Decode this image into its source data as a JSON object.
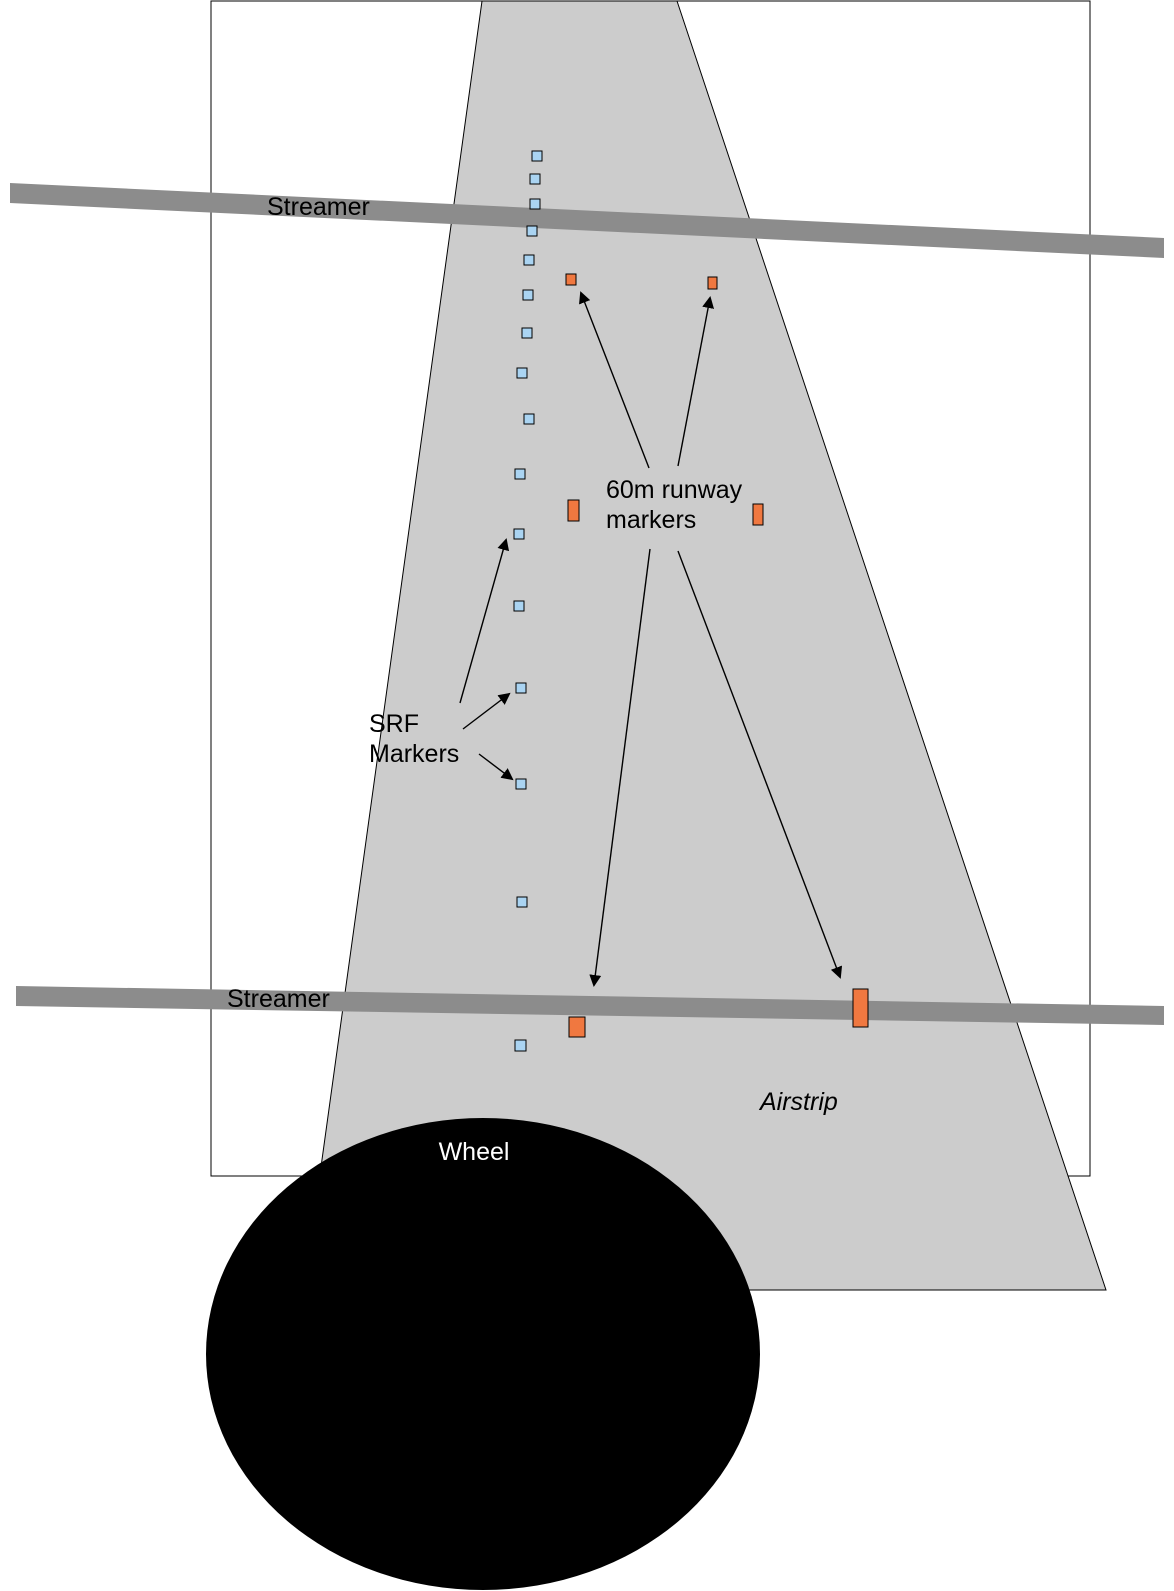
{
  "labels": {
    "streamer_top": "Streamer",
    "streamer_bottom": "Streamer",
    "runway_markers_line1": "60m runway",
    "runway_markers_line2": "markers",
    "srf_markers_line1": "SRF",
    "srf_markers_line2": "Markers",
    "airstrip": "Airstrip",
    "wheel": "Wheel"
  },
  "colors": {
    "airstrip_fill": "#cccccc",
    "streamer": "#8c8c8c",
    "srf_marker": "#aad4f2",
    "runway_marker": "#f07840",
    "wheel": "#000000",
    "wheel_label": "#ffffff",
    "frame_border": "#000000"
  }
}
